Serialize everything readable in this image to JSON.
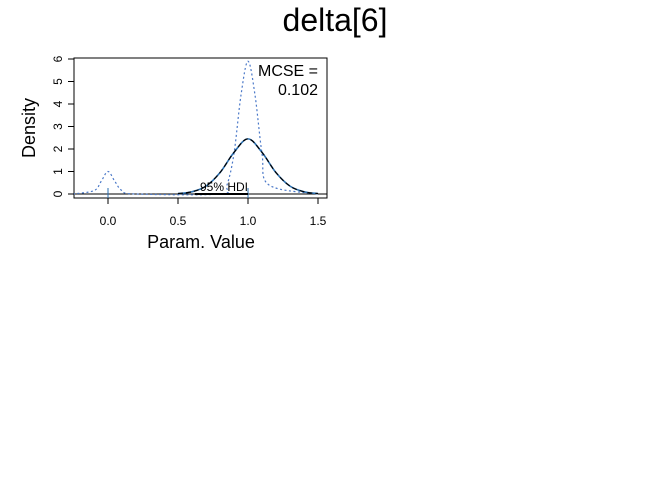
{
  "chart_data": {
    "type": "line",
    "title": "delta[6]",
    "xlabel": "Param. Value",
    "ylabel": "Density",
    "xlim": [
      -0.25,
      1.55
    ],
    "ylim": [
      0,
      6
    ],
    "x_ticks": [
      0.0,
      0.5,
      1.0,
      1.5
    ],
    "x_tick_labels": [
      "0.0",
      "0.5",
      "1.0",
      "1.5"
    ],
    "y_ticks": [
      0,
      1,
      2,
      3,
      4,
      5,
      6
    ],
    "y_tick_labels": [
      "0",
      "1",
      "2",
      "3",
      "4",
      "5",
      "6"
    ],
    "grid": false,
    "annotations": {
      "mcse_label": "MCSE =",
      "mcse_value": "0.102",
      "hdi_label": "95% HDI"
    },
    "hdi": [
      0.62,
      1.0
    ],
    "series": [
      {
        "style": "dotted",
        "color": "#4a78c8",
        "x": [
          -0.25,
          -0.1,
          -0.05,
          0.0,
          0.05,
          0.1,
          0.2,
          0.8,
          0.85,
          0.9,
          0.95,
          1.0,
          1.05,
          1.1,
          1.15,
          1.5
        ],
        "y": [
          0.0,
          0.15,
          0.55,
          1.0,
          0.55,
          0.15,
          0.0,
          0.0,
          0.4,
          1.8,
          4.4,
          5.9,
          4.4,
          1.8,
          0.4,
          0.0
        ]
      },
      {
        "style": "solid",
        "color": "#2a6fb0",
        "x": [
          0.5,
          0.6,
          0.7,
          0.8,
          0.9,
          1.0,
          1.1,
          1.2,
          1.3,
          1.4,
          1.5
        ],
        "y": [
          0.02,
          0.1,
          0.35,
          0.95,
          1.85,
          2.45,
          1.85,
          0.95,
          0.35,
          0.1,
          0.02
        ]
      },
      {
        "style": "dashed",
        "color": "#000000",
        "x": [
          0.5,
          0.6,
          0.7,
          0.8,
          0.9,
          1.0,
          1.1,
          1.2,
          1.3,
          1.4,
          1.5
        ],
        "y": [
          0.02,
          0.1,
          0.35,
          0.95,
          1.85,
          2.45,
          1.85,
          0.95,
          0.35,
          0.1,
          0.02
        ]
      }
    ],
    "marker_lines": [
      {
        "x": 0.0,
        "color": "#2a6fb0"
      },
      {
        "x": 1.0,
        "color": "#2a6fb0"
      }
    ]
  }
}
